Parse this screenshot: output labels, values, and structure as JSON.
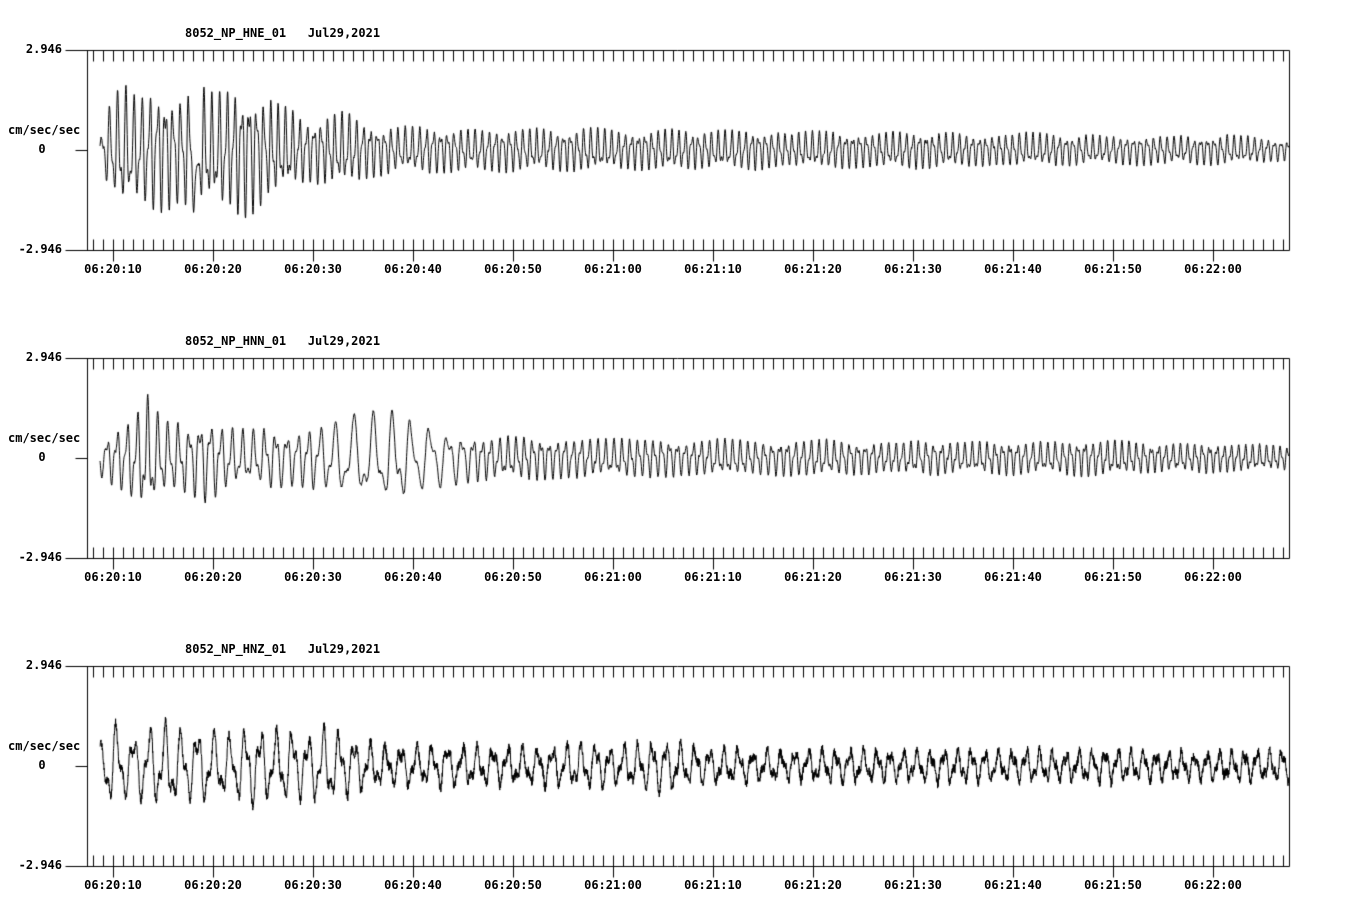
{
  "chart_data": {
    "type": "line",
    "kind": "three-component strong-motion seismogram",
    "date_label": "Jul29,2021",
    "grid": false,
    "y_axis": {
      "unit": "cm/sec/sec",
      "max": 2.946,
      "min": -2.946,
      "max_label": "2.946",
      "zero_label": "0",
      "min_label": "-2.946"
    },
    "x_axis": {
      "start_time": "06:20:07",
      "end_time": "06:22:07",
      "major_interval_s": 10,
      "minor_interval_s": 1,
      "major_labels": [
        "06:20:10",
        "06:20:20",
        "06:20:30",
        "06:20:40",
        "06:20:50",
        "06:21:00",
        "06:21:10",
        "06:21:20",
        "06:21:30",
        "06:21:40",
        "06:21:50",
        "06:22:00"
      ]
    },
    "panels": [
      {
        "title": "8052_NP_HNE_01   Jul29,2021",
        "waveform": {
          "seed": 7,
          "freq2_ratio": 1.9,
          "hf_noise": 0.02,
          "freq_profile": [
            [
              0,
              1.2
            ],
            [
              20,
              1.4
            ],
            [
              60,
              1.5
            ],
            [
              120.2,
              1.5
            ]
          ],
          "envelope": [
            [
              1.3,
              0.3
            ],
            [
              2.2,
              1.3
            ],
            [
              3.5,
              1.9
            ],
            [
              5,
              1.5
            ],
            [
              7,
              1.8
            ],
            [
              9,
              1.6
            ],
            [
              11,
              1.9
            ],
            [
              12.5,
              1.6
            ],
            [
              14,
              1.8
            ],
            [
              16,
              1.9
            ],
            [
              18,
              1.5
            ],
            [
              20,
              1.2
            ],
            [
              22,
              0.9
            ],
            [
              24,
              1.0
            ],
            [
              26,
              1.1
            ],
            [
              28,
              0.8
            ],
            [
              31,
              0.65
            ],
            [
              34,
              0.7
            ],
            [
              38,
              0.6
            ],
            [
              42,
              0.65
            ],
            [
              46,
              0.6
            ],
            [
              50,
              0.65
            ],
            [
              54,
              0.55
            ],
            [
              58,
              0.6
            ],
            [
              62,
              0.55
            ],
            [
              66,
              0.6
            ],
            [
              70,
              0.5
            ],
            [
              74,
              0.55
            ],
            [
              78,
              0.5
            ],
            [
              82,
              0.55
            ],
            [
              86,
              0.5
            ],
            [
              90,
              0.45
            ],
            [
              94,
              0.5
            ],
            [
              98,
              0.45
            ],
            [
              102,
              0.4
            ],
            [
              106,
              0.45
            ],
            [
              110,
              0.4
            ],
            [
              114,
              0.45
            ],
            [
              118,
              0.35
            ],
            [
              120.2,
              0.3
            ]
          ],
          "spikes": [
            [
              10.9,
              -2.4,
              0.15
            ]
          ]
        }
      },
      {
        "title": "8052_NP_HNN_01   Jul29,2021",
        "waveform": {
          "seed": 13,
          "freq2_ratio": 2.1,
          "hf_noise": 0.02,
          "freq_profile": [
            [
              0,
              1.0
            ],
            [
              22,
              0.9
            ],
            [
              26,
              0.5
            ],
            [
              36,
              0.55
            ],
            [
              40,
              1.2
            ],
            [
              120.2,
              1.4
            ]
          ],
          "envelope": [
            [
              1.3,
              0.5
            ],
            [
              3,
              0.9
            ],
            [
              5,
              1.3
            ],
            [
              6,
              1.8
            ],
            [
              7.5,
              1.1
            ],
            [
              10,
              1.0
            ],
            [
              12,
              1.3
            ],
            [
              14,
              0.9
            ],
            [
              16,
              0.8
            ],
            [
              18,
              0.9
            ],
            [
              20,
              0.8
            ],
            [
              22,
              0.9
            ],
            [
              24,
              1.0
            ],
            [
              26,
              1.2
            ],
            [
              28,
              1.3
            ],
            [
              30,
              1.4
            ],
            [
              32,
              1.2
            ],
            [
              34,
              1.0
            ],
            [
              36,
              0.8
            ],
            [
              38,
              0.7
            ],
            [
              41,
              0.6
            ],
            [
              44,
              0.65
            ],
            [
              48,
              0.6
            ],
            [
              52,
              0.55
            ],
            [
              56,
              0.6
            ],
            [
              60,
              0.5
            ],
            [
              64,
              0.55
            ],
            [
              68,
              0.5
            ],
            [
              72,
              0.55
            ],
            [
              76,
              0.5
            ],
            [
              80,
              0.45
            ],
            [
              84,
              0.5
            ],
            [
              88,
              0.45
            ],
            [
              92,
              0.5
            ],
            [
              96,
              0.45
            ],
            [
              100,
              0.55
            ],
            [
              104,
              0.5
            ],
            [
              108,
              0.4
            ],
            [
              112,
              0.45
            ],
            [
              116,
              0.4
            ],
            [
              120.2,
              0.35
            ]
          ],
          "spikes": []
        }
      },
      {
        "title": "8052_NP_HNZ_01   Jul29,2021",
        "waveform": {
          "seed": 29,
          "freq2_ratio": 2.3,
          "hf_noise": 0.0,
          "hf_env": [
            [
              0,
              0.12
            ],
            [
              30,
              0.14
            ],
            [
              120.2,
              0.14
            ]
          ],
          "freq_profile": [
            [
              0,
              0.6
            ],
            [
              120.2,
              0.8
            ]
          ],
          "envelope": [
            [
              1.3,
              0.6
            ],
            [
              2.5,
              1.4
            ],
            [
              4,
              0.9
            ],
            [
              6,
              1.1
            ],
            [
              8,
              1.3
            ],
            [
              10,
              1.0
            ],
            [
              12,
              1.1
            ],
            [
              14,
              0.9
            ],
            [
              16,
              1.2
            ],
            [
              18,
              1.0
            ],
            [
              20,
              1.1
            ],
            [
              22,
              0.9
            ],
            [
              24,
              1.2
            ],
            [
              26,
              0.9
            ],
            [
              28,
              0.7
            ],
            [
              31,
              0.6
            ],
            [
              34,
              0.65
            ],
            [
              38,
              0.6
            ],
            [
              42,
              0.55
            ],
            [
              46,
              0.6
            ],
            [
              50,
              0.65
            ],
            [
              54,
              0.6
            ],
            [
              57,
              0.8
            ],
            [
              59,
              0.7
            ],
            [
              62,
              0.55
            ],
            [
              66,
              0.5
            ],
            [
              70,
              0.45
            ],
            [
              74,
              0.5
            ],
            [
              78,
              0.5
            ],
            [
              82,
              0.45
            ],
            [
              86,
              0.5
            ],
            [
              90,
              0.45
            ],
            [
              94,
              0.5
            ],
            [
              98,
              0.45
            ],
            [
              102,
              0.5
            ],
            [
              106,
              0.45
            ],
            [
              110,
              0.4
            ],
            [
              114,
              0.45
            ],
            [
              118,
              0.45
            ],
            [
              120.2,
              0.45
            ]
          ],
          "spikes": []
        }
      }
    ],
    "trace_color": "#000000",
    "axis_color": "#000000",
    "background_color": "#ffffff"
  }
}
